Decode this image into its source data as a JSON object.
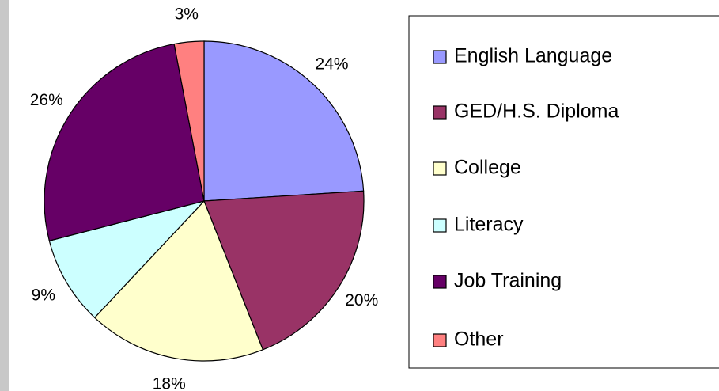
{
  "chart_data": {
    "type": "pie",
    "categories": [
      "English Language",
      "GED/H.S. Diploma",
      "College",
      "Literacy",
      "Job Training",
      "Other"
    ],
    "values": [
      24,
      20,
      18,
      9,
      26,
      3
    ],
    "value_labels": [
      "24%",
      "20%",
      "18%",
      "9%",
      "26%",
      "3%"
    ],
    "colors": [
      "#9999ff",
      "#993366",
      "#ffffcc",
      "#ccffff",
      "#660066",
      "#ff8080"
    ],
    "legend": "right"
  }
}
